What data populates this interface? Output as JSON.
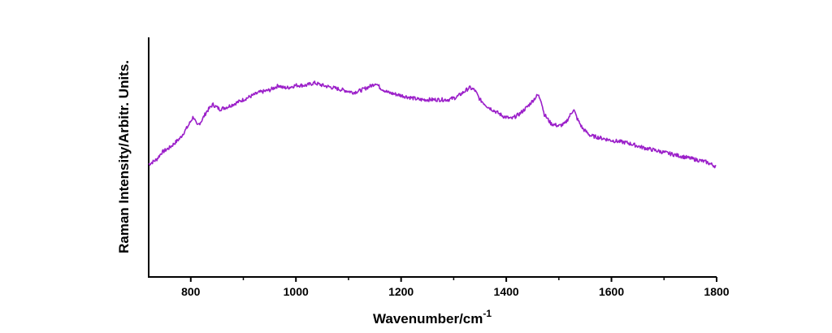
{
  "chart_data": {
    "type": "line",
    "title": "",
    "xlabel": "Wavenumber/cm",
    "xlabel_superscript": "-1",
    "ylabel": "Raman Intensity/Arbitr. Units.",
    "xlim": [
      720,
      1800
    ],
    "ylim": [
      0,
      100
    ],
    "x_ticks": [
      800,
      1000,
      1200,
      1400,
      1600,
      1800
    ],
    "x_tick_labels": [
      "800",
      "1000",
      "1200",
      "1400",
      "1600",
      "1800"
    ],
    "y_ticks_shown": false,
    "grid": false,
    "line_color": "#9B1FC9",
    "series": [
      {
        "x": [
          720,
          735,
          745,
          760,
          780,
          795,
          805,
          812,
          820,
          830,
          842,
          855,
          870,
          890,
          910,
          930,
          950,
          968,
          975,
          985,
          1000,
          1020,
          1035,
          1050,
          1070,
          1090,
          1110,
          1125,
          1135,
          1145,
          1152,
          1160,
          1175,
          1195,
          1215,
          1235,
          1250,
          1270,
          1290,
          1305,
          1318,
          1330,
          1340,
          1350,
          1365,
          1380,
          1395,
          1410,
          1425,
          1440,
          1452,
          1460,
          1466,
          1472,
          1485,
          1500,
          1512,
          1520,
          1528,
          1535,
          1545,
          1560,
          1580,
          1600,
          1630,
          1660,
          1700,
          1740,
          1780,
          1800
        ],
        "values": [
          47,
          49,
          52,
          54,
          58,
          63,
          67,
          63,
          65,
          69,
          72,
          70,
          71,
          73,
          75,
          77,
          78,
          80,
          79,
          79,
          80,
          80,
          81,
          80,
          79,
          78,
          77,
          78,
          79,
          80,
          81,
          79,
          77,
          76,
          75,
          74,
          74,
          74,
          74,
          75,
          77,
          79,
          78,
          74,
          71,
          69,
          67,
          66,
          68,
          71,
          74,
          76,
          74,
          68,
          64,
          63,
          64,
          67,
          70,
          66,
          62,
          59,
          58,
          57,
          56,
          54,
          52,
          50,
          48,
          46
        ]
      }
    ]
  }
}
